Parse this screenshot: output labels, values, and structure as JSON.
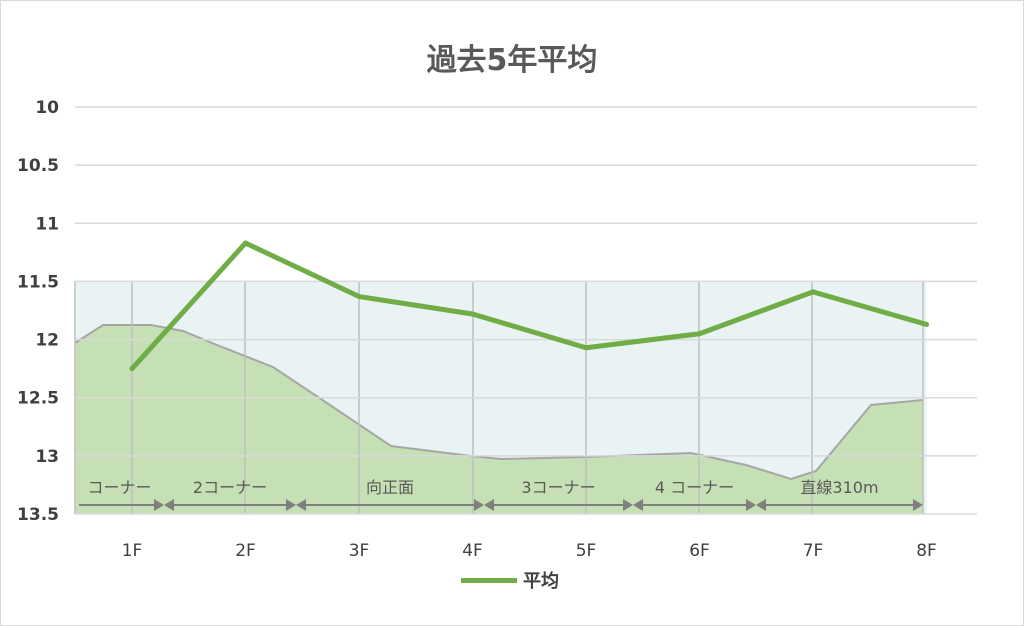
{
  "chart_data": {
    "type": "line",
    "title": "過去5年平均",
    "categories": [
      "1F",
      "2F",
      "3F",
      "4F",
      "5F",
      "6F",
      "7F",
      "8F"
    ],
    "series": [
      {
        "name": "平均",
        "values": [
          12.25,
          11.17,
          11.63,
          11.78,
          12.07,
          11.95,
          11.59,
          11.87
        ],
        "color": "#70ad47"
      }
    ],
    "y_ticks": [
      "10",
      "10.5",
      "11",
      "11.5",
      "12",
      "12.5",
      "13",
      "13.5"
    ],
    "ylim": [
      10,
      13.5
    ],
    "y_reversed": true,
    "grid": true,
    "legend": "bottom",
    "background_segments": [
      "コーナー",
      "2コーナー",
      "向正面",
      "3コーナー",
      "4 コーナー",
      "直線310m"
    ],
    "background_colors": {
      "fill": "#c5e0b4",
      "sky": "#e9f3f4",
      "line": "#70ad47"
    }
  }
}
